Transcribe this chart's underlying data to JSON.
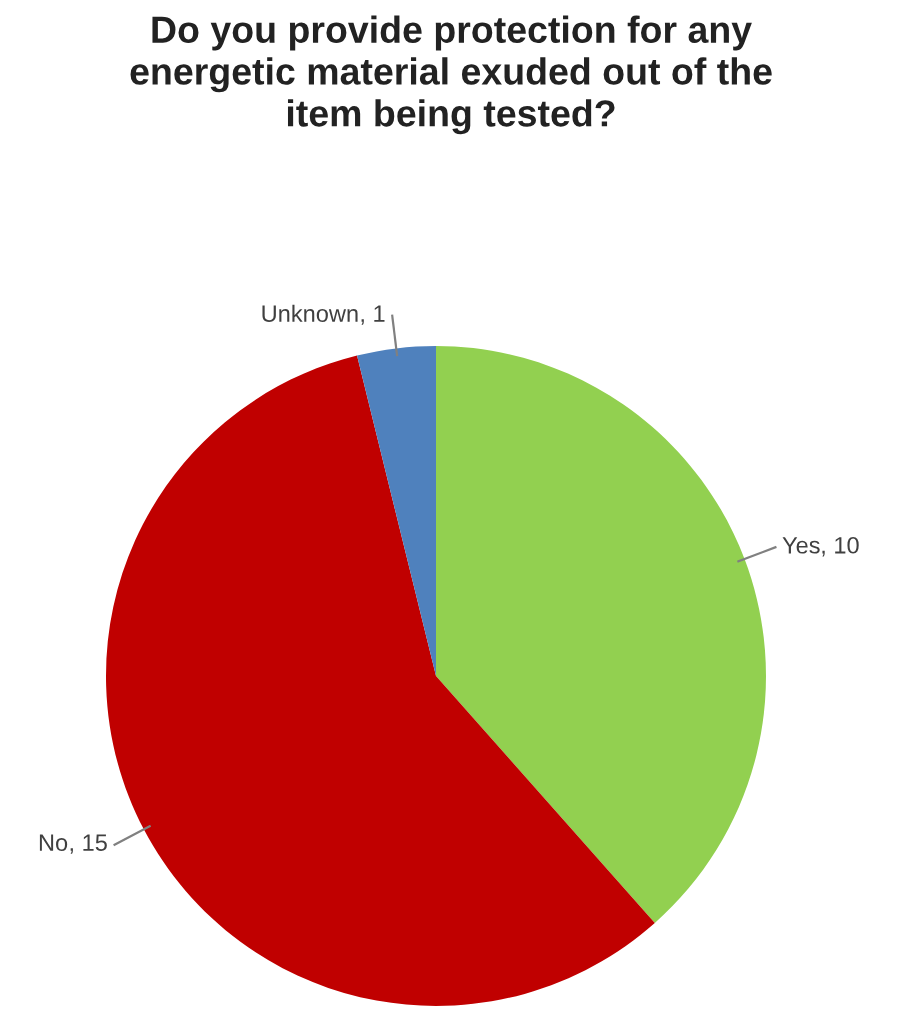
{
  "chart_data": {
    "type": "pie",
    "title": "Do you provide protection for any\nenergetic material exuded out of the\nitem being tested?",
    "categories": [
      "Yes",
      "No",
      "Unknown"
    ],
    "values": [
      10,
      15,
      1
    ],
    "colors": [
      "#92d050",
      "#c00000",
      "#4f81bd"
    ],
    "value_labels": [
      ", 10",
      ", 15",
      ", 1"
    ],
    "legend": false
  }
}
